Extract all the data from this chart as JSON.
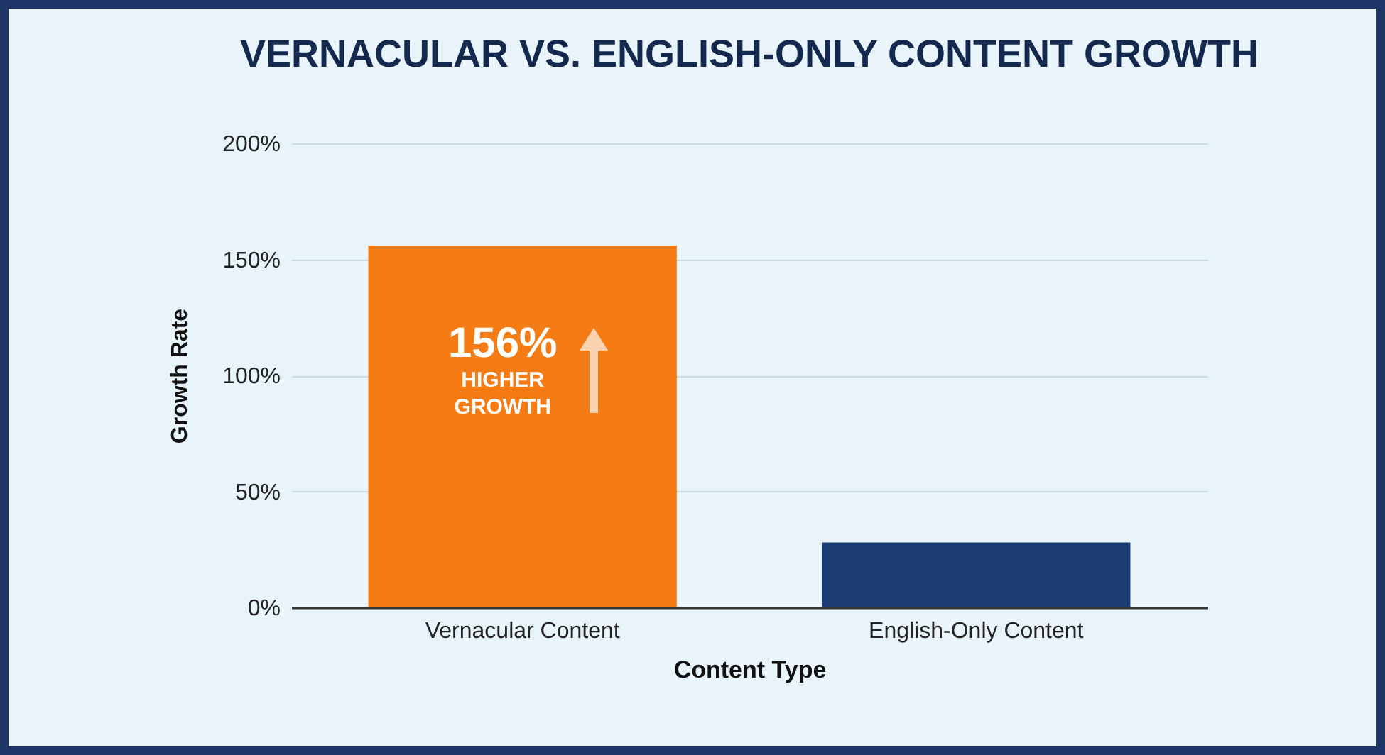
{
  "chart_data": {
    "type": "bar",
    "title": "VERNACULAR VS. ENGLISH-ONLY CONTENT GROWTH",
    "xlabel": "Content Type",
    "ylabel": "Growth Rate",
    "categories": [
      "Vernacular Content",
      "English-Only Content"
    ],
    "values": [
      156,
      28
    ],
    "colors": [
      "#f57c14",
      "#1a3c72"
    ],
    "ylim": [
      0,
      200
    ],
    "yticks": [
      {
        "value": 0,
        "label": "0%"
      },
      {
        "value": 50,
        "label": "50%"
      },
      {
        "value": 100,
        "label": "100%"
      },
      {
        "value": 150,
        "label": "150%"
      },
      {
        "value": 200,
        "label": "200%"
      }
    ],
    "grid": "y",
    "annotations": [
      "156% HIGHER GROWTH"
    ]
  }
}
